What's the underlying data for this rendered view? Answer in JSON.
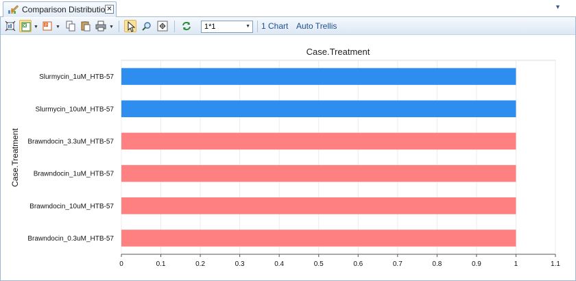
{
  "tab": {
    "title": "Comparison Distribution",
    "close_glyph": "✕",
    "icon": "chart-pencil-icon"
  },
  "tabstrip": {
    "overflow_glyph": "▼"
  },
  "toolbar": {
    "combo_value": "1*1",
    "link_one_chart": "1 Chart",
    "link_auto_trellis": "Auto Trellis",
    "icons": [
      "fit-chart-icon",
      "export-excel-icon",
      "export-powerpoint-icon",
      "copy-icon",
      "paste-icon",
      "print-icon",
      "pointer-icon",
      "zoom-icon",
      "fit-view-icon",
      "refresh-icon"
    ]
  },
  "colors": {
    "series_blue": "#2d8ef0",
    "series_red": "#ff8080",
    "accent": "#1f4e8c"
  },
  "chart_data": {
    "type": "bar",
    "orientation": "horizontal",
    "title": "Case.Treatment",
    "ylabel": "Case.Treatment",
    "xlabel": "",
    "xlim": [
      0,
      1.1
    ],
    "x_ticks": [
      "0",
      "0.1",
      "0.2",
      "0.3",
      "0.4",
      "0.5",
      "0.6",
      "0.7",
      "0.8",
      "0.9",
      "1",
      "1.1"
    ],
    "grid": true,
    "categories": [
      "Slurmycin_1uM_HTB-57",
      "Slurmycin_10uM_HTB-57",
      "Brawndocin_3.3uM_HTB-57",
      "Brawndocin_1uM_HTB-57",
      "Brawndocin_10uM_HTB-57",
      "Brawndocin_0.3uM_HTB-57"
    ],
    "values": [
      1,
      1,
      1,
      1,
      1,
      1
    ],
    "bar_colors": [
      "#2d8ef0",
      "#2d8ef0",
      "#ff8080",
      "#ff8080",
      "#ff8080",
      "#ff8080"
    ]
  }
}
